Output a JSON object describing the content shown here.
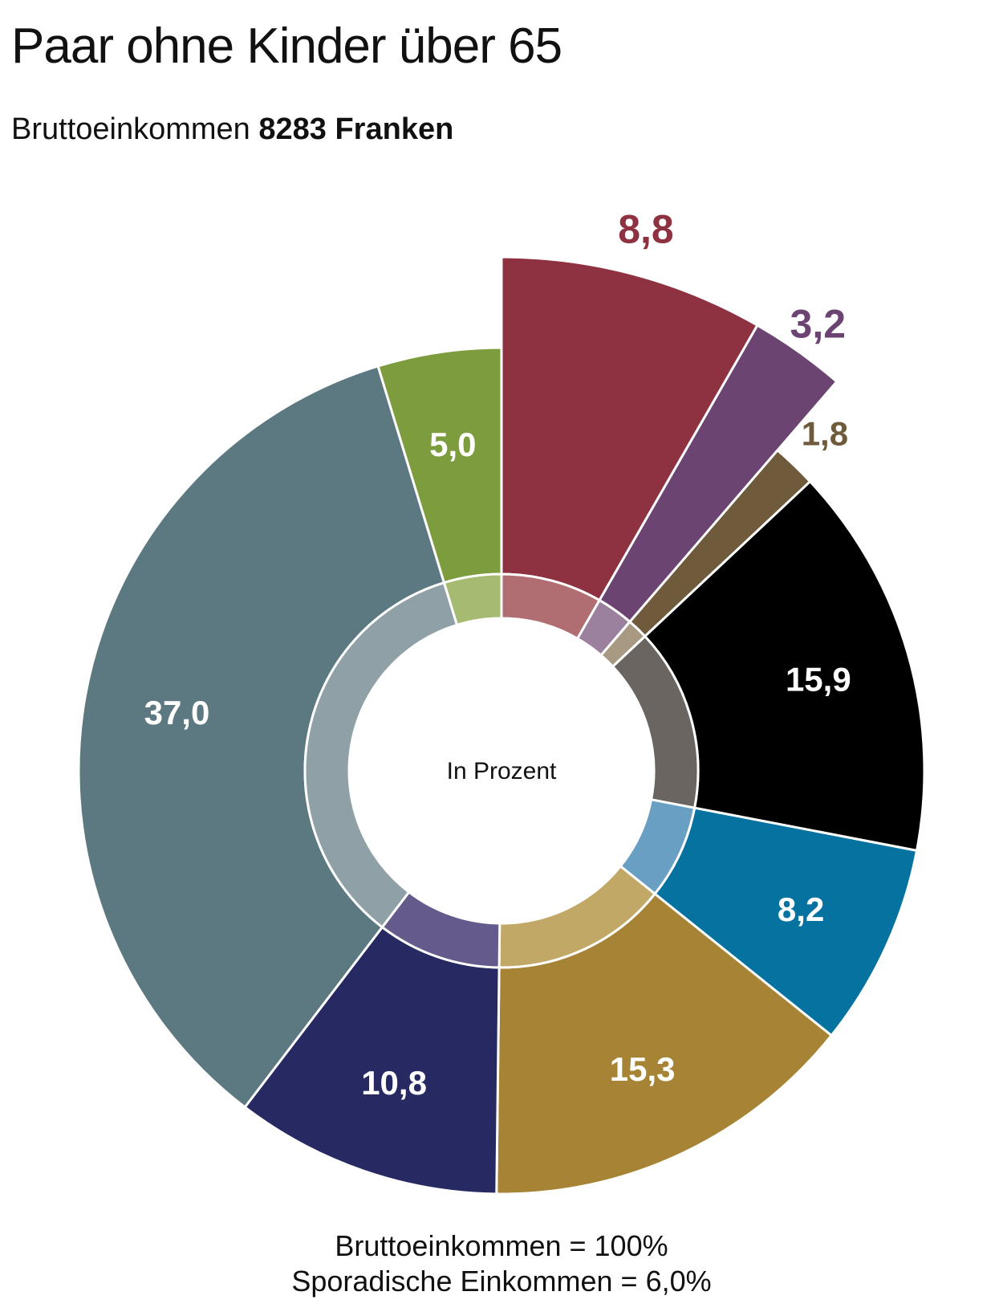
{
  "title": "Paar ohne Kinder über 65",
  "subtitle": {
    "prefix": "Bruttoeinkommen ",
    "value": "8283 Franken"
  },
  "center_label": "In Prozent",
  "footer": {
    "line1": "Bruttoeinkommen = 100%",
    "line2": "Sporadische Einkommen  = 6,0%"
  },
  "chart_data": {
    "type": "pie",
    "title": "Paar ohne Kinder über 65",
    "subtitle": "Bruttoeinkommen 8283 Franken",
    "unit": "In Prozent",
    "slices": [
      {
        "label": "8,8",
        "value": 8.8,
        "color": "#8e3140",
        "inner_color": "#b06e72",
        "exploded": true,
        "label_color": "#8e3140"
      },
      {
        "label": "3,2",
        "value": 3.2,
        "color": "#6c4471",
        "inner_color": "#9c819e",
        "exploded": true,
        "label_color": "#6c4471"
      },
      {
        "label": "1,8",
        "value": 1.8,
        "color": "#6f5b3c",
        "inner_color": "#a89a82",
        "exploded": false,
        "label_color": "#6f5b3c"
      },
      {
        "label": "15,9",
        "value": 15.9,
        "color": "#000000",
        "inner_color": "#6a6560",
        "exploded": false,
        "label_color": "#ffffff"
      },
      {
        "label": "8,2",
        "value": 8.2,
        "color": "#0572a0",
        "inner_color": "#6a9fc4",
        "exploded": false,
        "label_color": "#ffffff"
      },
      {
        "label": "15,3",
        "value": 15.3,
        "color": "#a78335",
        "inner_color": "#c2a866",
        "exploded": false,
        "label_color": "#ffffff"
      },
      {
        "label": "10,8",
        "value": 10.8,
        "color": "#272963",
        "inner_color": "#655a8c",
        "exploded": false,
        "label_color": "#ffffff"
      },
      {
        "label": "37,0",
        "value": 37.0,
        "color": "#5c7880",
        "inner_color": "#8fa1a6",
        "exploded": false,
        "label_color": "#ffffff"
      },
      {
        "label": "5,0",
        "value": 5.0,
        "color": "#7d9c3d",
        "inner_color": "#a6bb72",
        "exploded": false,
        "label_color": "#ffffff"
      }
    ]
  }
}
